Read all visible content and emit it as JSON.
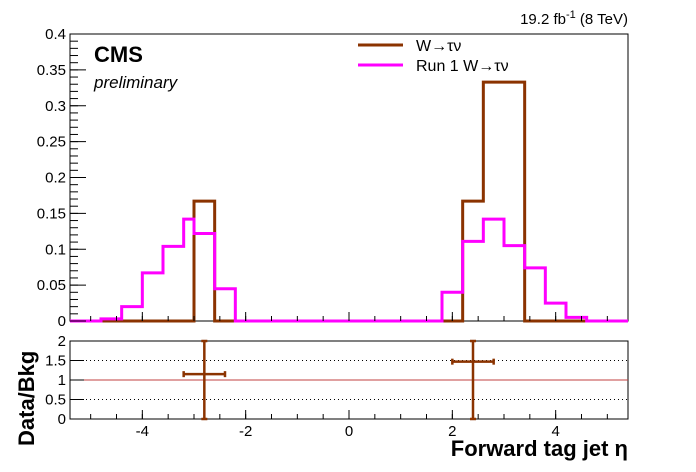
{
  "header": {
    "lumi_value": "19.2 fb",
    "lumi_superscript": "-1",
    "lumi_energy": " (8 TeV)",
    "experiment": "CMS",
    "status": "preliminary"
  },
  "chart_data": [
    {
      "type": "histogram",
      "panel": "main",
      "xlabel": "Forward tag jet η",
      "ylabel": "",
      "xlim": [
        -5.4,
        5.4
      ],
      "ylim": [
        0,
        0.4
      ],
      "xticks": [
        -4,
        -2,
        0,
        2,
        4
      ],
      "xtick_labels": [
        "-4",
        "-2",
        "0",
        "2",
        "4"
      ],
      "yticks": [
        0,
        0.05,
        0.1,
        0.15,
        0.2,
        0.25,
        0.3,
        0.35,
        0.4
      ],
      "ytick_labels": [
        "0",
        "0.05",
        "0.1",
        "0.15",
        "0.2",
        "0.25",
        "0.3",
        "0.35",
        "0.4"
      ],
      "legend_position": "top-center",
      "series": [
        {
          "name": "W→τν",
          "color": "#8b3300",
          "bin_edges": [
            -4.8,
            -4.4,
            -3.6,
            -3.0,
            -2.6,
            -2.2,
            2.2,
            2.6,
            3.4,
            4.4
          ],
          "values": [
            0.0,
            0.0,
            0.0,
            0.167,
            0.0,
            0.0,
            0.167,
            0.333,
            0.0
          ]
        },
        {
          "name": "Run 1 W→τν",
          "color": "#ff00ff",
          "bin_edges": [
            -4.8,
            -4.4,
            -4.0,
            -3.6,
            -3.2,
            -3.0,
            -2.6,
            -2.2,
            1.8,
            2.2,
            2.6,
            3.0,
            3.4,
            3.8,
            4.2,
            4.6
          ],
          "values": [
            0.003,
            0.02,
            0.067,
            0.104,
            0.142,
            0.122,
            0.045,
            0.0,
            0.04,
            0.111,
            0.142,
            0.105,
            0.074,
            0.025,
            0.005
          ]
        }
      ]
    },
    {
      "type": "ratio",
      "panel": "ratio",
      "xlabel": "Forward tag jet η",
      "ylabel": "Data/Bkg",
      "xlim": [
        -5.4,
        5.4
      ],
      "ylim": [
        0,
        2
      ],
      "xticks": [
        -4,
        -2,
        0,
        2,
        4
      ],
      "xtick_labels": [
        "-4",
        "-2",
        "0",
        "2",
        "4"
      ],
      "yticks": [
        0,
        0.5,
        1,
        1.5,
        2
      ],
      "ytick_labels": [
        "0",
        "0.5",
        "1",
        "1.5",
        "2"
      ],
      "reference_line": 1,
      "dotted_lines": [
        0.5,
        1.5
      ],
      "points": [
        {
          "x": -2.8,
          "y": 1.15,
          "xerr": 0.4,
          "yerr_low": 1.15,
          "yerr_high": 0.85
        },
        {
          "x": 2.4,
          "y": 1.47,
          "xerr": 0.4,
          "yerr_low": 1.47,
          "yerr_high": 0.53
        }
      ],
      "point_color": "#8b3300",
      "reference_color": "#c04040"
    }
  ]
}
